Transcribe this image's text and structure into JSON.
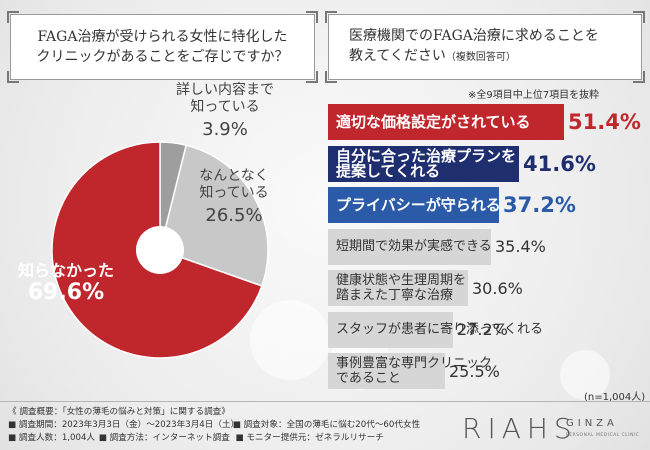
{
  "left_question": "FAGA治療が受けられる女性に特化した\nクリニックがあることをご存じですか？",
  "right_question": "医療機関でのFAGA治療に求めることを\n教えてください",
  "right_question_note": "（複数回答可）",
  "footnote": "※全9項目中上位7項目を抜粋",
  "sample_size": "(n=1,004人)",
  "chart_data": [
    {
      "type": "pie",
      "categories": [
        "詳しい内容まで知っている",
        "なんとなく知っている",
        "知らなかった"
      ],
      "labels": [
        "詳しい内容まで\n知っている",
        "なんとなく\n知っている",
        "知らなかった"
      ],
      "values": [
        3.9,
        26.5,
        69.6
      ],
      "value_labels": [
        "3.9%",
        "26.5%",
        "69.6%"
      ],
      "colors": [
        "#9e9e9e",
        "#c8c8c8",
        "#c0272d"
      ],
      "donut_hole": true
    },
    {
      "type": "bar",
      "orientation": "horizontal",
      "categories": [
        "適切な価格設定がされている",
        "自分に合った治療プランを提案してくれる",
        "プライバシーが守られる",
        "短期間で効果が実感できる",
        "健康状態や生理周期を踏まえた丁寧な治療",
        "スタッフが患者に寄り添ってくれる",
        "事例豊富な専門クリニックであること"
      ],
      "labels": [
        "適切な価格設定がされている",
        "自分に合った治療プランを\n提案してくれる",
        "プライバシーが守られる",
        "短期間で効果が実感できる",
        "健康状態や生理周期を\n踏まえた丁寧な治療",
        "スタッフが患者に寄り添ってくれる",
        "事例豊富な専門クリニック\nであること"
      ],
      "values": [
        51.4,
        41.6,
        37.2,
        35.4,
        30.6,
        27.2,
        25.5
      ],
      "value_labels": [
        "51.4%",
        "41.6%",
        "37.2%",
        "35.4%",
        "30.6%",
        "27.2%",
        "25.5%"
      ],
      "colors": [
        "#c0272d",
        "#1f2e6e",
        "#2a5aa8",
        "#d6d6d6",
        "#d6d6d6",
        "#d6d6d6",
        "#d6d6d6"
      ],
      "value_colors": [
        "#c0272d",
        "#1f2e6e",
        "#2a5aa8",
        "#333333",
        "#333333",
        "#333333",
        "#333333"
      ],
      "highlighted": [
        true,
        true,
        true,
        false,
        false,
        false,
        false
      ]
    }
  ],
  "survey": {
    "title": "《 調査概要：「女性の薄毛の悩みと対策」に関する調査》",
    "period": "■ 調査期間：2023年3月3日（金）～2023年3月4日（土）",
    "target": "■ 調査対象：全国の薄毛に悩む20代～60代女性",
    "respondents": "■ 調査人数：1,004人",
    "method": "■ 調査方法：インターネット調査",
    "provider": "■ モニター提供元：ゼネラルリサーチ"
  },
  "logo": {
    "main": "RIAHS",
    "ginza": "GINZA",
    "sub": "PERSONAL MEDICAL CLINIC"
  }
}
